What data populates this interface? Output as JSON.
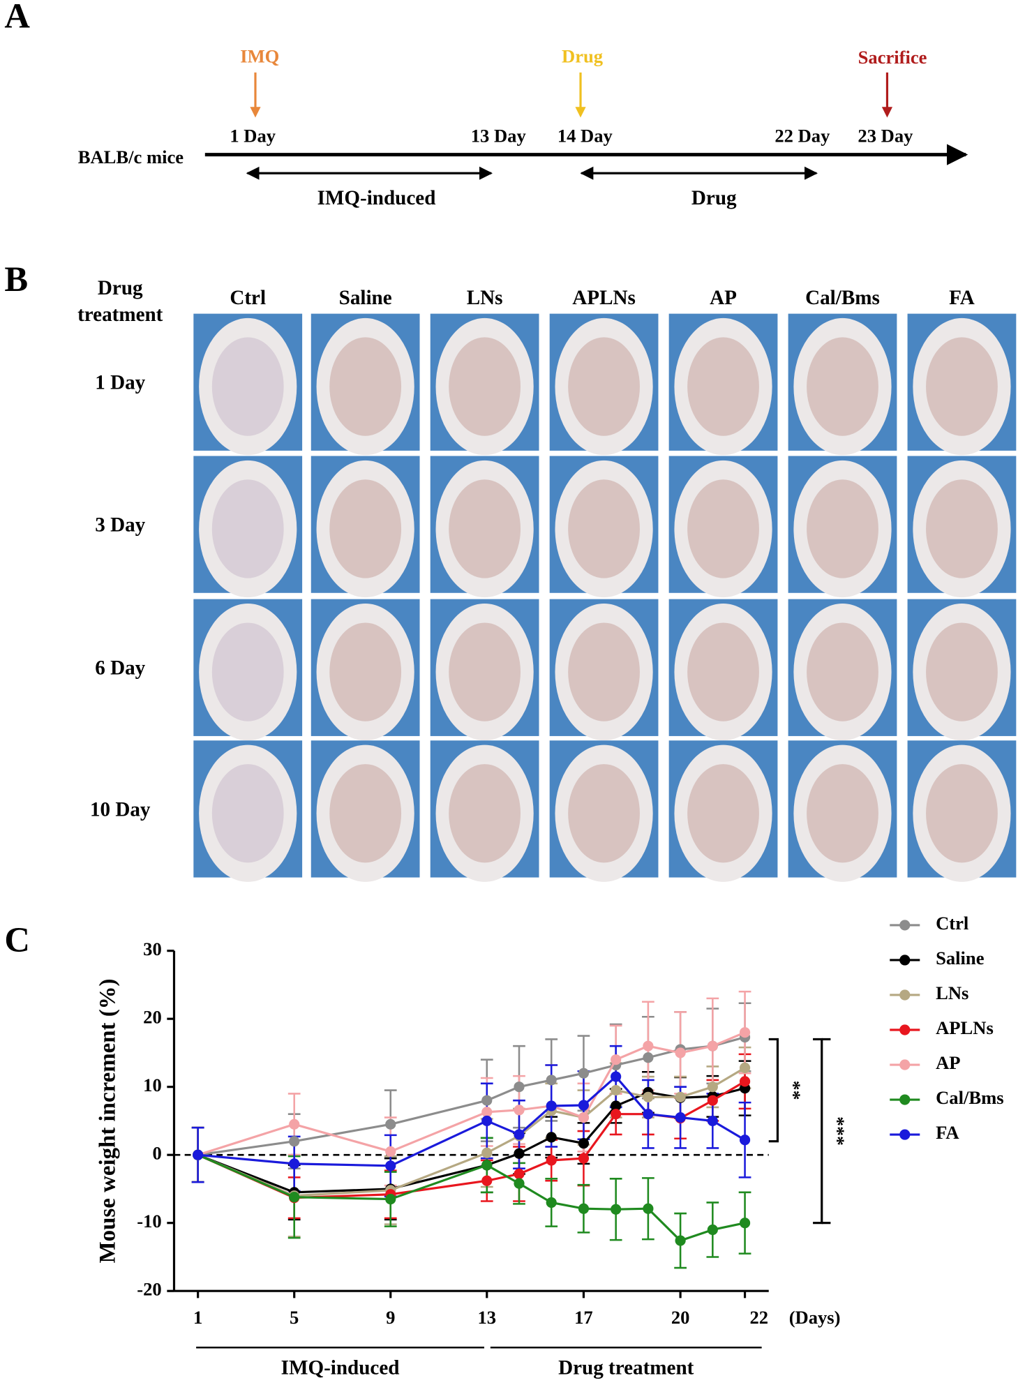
{
  "panel_labels": [
    "A",
    "B",
    "C"
  ],
  "timeline": {
    "subject": "BALB/c mice",
    "events": [
      {
        "label": "IMQ",
        "color": "#e8873a"
      },
      {
        "label": "Drug",
        "color": "#f0c020"
      },
      {
        "label": "Sacrifice",
        "color": "#b01c1c"
      }
    ],
    "days": [
      "1 Day",
      "13 Day",
      "14 Day",
      "22 Day",
      "23 Day"
    ],
    "phases": [
      "IMQ-induced",
      "Drug"
    ]
  },
  "photo_grid": {
    "corner": [
      "Drug",
      "treatment"
    ],
    "columns": [
      "Ctrl",
      "Saline",
      "LNs",
      "APLNs",
      "AP",
      "Cal/Bms",
      "FA"
    ],
    "rows": [
      "1 Day",
      "3 Day",
      "6 Day",
      "10 Day"
    ]
  },
  "chart_data": {
    "type": "line",
    "y_label": "Mouse weight increment (%)",
    "x_unit": "(Days)",
    "categories": [
      "1",
      "5",
      "9",
      "13",
      null,
      null,
      "17",
      null,
      null,
      "20",
      null,
      "22"
    ],
    "ylim": [
      -20,
      30
    ],
    "yticks": [
      -20,
      -10,
      0,
      10,
      20,
      30
    ],
    "reference_line": 0,
    "phases": [
      "IMQ-induced",
      "Drug treatment"
    ],
    "annotations": [
      {
        "text": "**",
        "from": 17,
        "to": 2
      },
      {
        "text": "***",
        "from": 17,
        "to": -10
      }
    ],
    "series": [
      {
        "name": "Ctrl",
        "color": "#8c8c8c",
        "values": [
          0,
          2,
          4.5,
          8,
          10,
          11,
          12,
          13.2,
          14.3,
          15.5,
          16,
          17.3
        ],
        "errors": [
          4,
          4,
          5,
          6,
          6,
          6,
          5.5,
          6,
          6,
          5.5,
          5.5,
          5
        ]
      },
      {
        "name": "Saline",
        "color": "#000000",
        "values": [
          0,
          -5.5,
          -5,
          -1.5,
          0.2,
          2.6,
          1.7,
          7.2,
          9.2,
          8.4,
          8.6,
          9.8
        ],
        "errors": [
          4,
          4,
          4.5,
          4,
          3,
          3,
          3,
          2.5,
          3,
          3,
          3,
          4
        ]
      },
      {
        "name": "LNs",
        "color": "#b5a882",
        "values": [
          0,
          -6,
          -5.2,
          0.3,
          2.8,
          6.5,
          5.5,
          9.5,
          8.5,
          8.5,
          10,
          12.8
        ],
        "errors": [
          4,
          6,
          5,
          5,
          4,
          4,
          4,
          4,
          3,
          3,
          3,
          3
        ]
      },
      {
        "name": "APLNs",
        "color": "#e8161e",
        "values": [
          0,
          -6.3,
          -5.8,
          -3.8,
          -2.8,
          -0.8,
          -0.5,
          6,
          6,
          5.4,
          8,
          10.8
        ],
        "errors": [
          4,
          3,
          3.5,
          3,
          4,
          3,
          4,
          3,
          3,
          3,
          3,
          4
        ]
      },
      {
        "name": "AP",
        "color": "#f4a3a6",
        "values": [
          0,
          4.5,
          0.5,
          6.3,
          6.6,
          7.2,
          5.5,
          14,
          16,
          15,
          16,
          18
        ],
        "errors": [
          4,
          4.5,
          5,
          5,
          5,
          6,
          5,
          5,
          6.5,
          6,
          7,
          6
        ]
      },
      {
        "name": "Cal/Bms",
        "color": "#1f8a1f",
        "values": [
          0,
          -6.2,
          -6.5,
          -1.5,
          -4.2,
          -7,
          -7.9,
          -8,
          -7.9,
          -12.6,
          -11,
          -10
        ],
        "errors": [
          4,
          6,
          4,
          4,
          3,
          3.5,
          3.5,
          4.5,
          4.5,
          4,
          4,
          4.5
        ]
      },
      {
        "name": "FA",
        "color": "#1a1adb",
        "values": [
          0,
          -1.3,
          -1.6,
          5,
          3,
          7.2,
          7.3,
          11.5,
          6,
          5.5,
          5,
          2.2
        ],
        "errors": [
          4,
          4,
          4.5,
          5.5,
          5,
          6,
          5,
          4.5,
          5,
          4.5,
          4,
          5.5
        ]
      }
    ]
  }
}
